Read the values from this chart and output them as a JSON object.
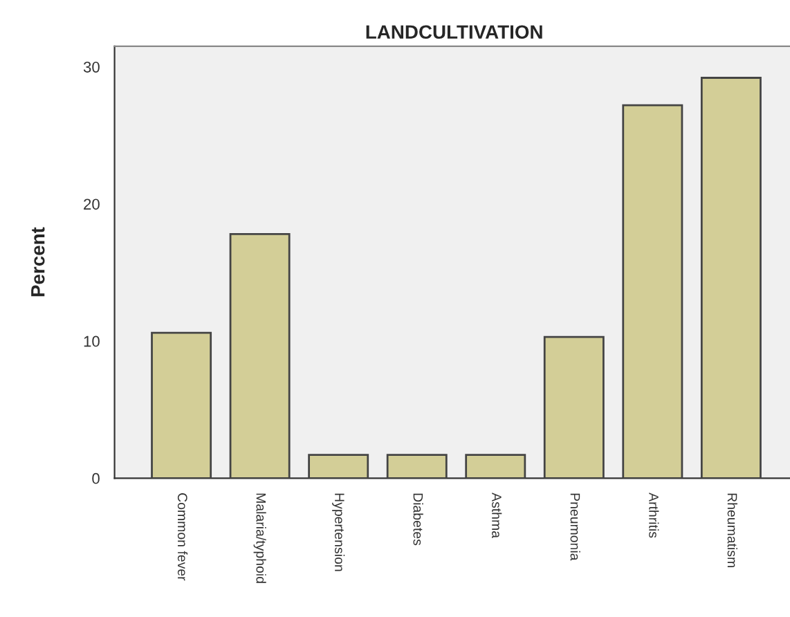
{
  "chart_data": {
    "type": "bar",
    "title": "LANDCULTIVATION",
    "ylabel": "Percent",
    "categories": [
      "Common fever",
      "Malaria/typhoid",
      "Hypertension",
      "Diabetes",
      "Asthma",
      "Pneumonia",
      "Arthritis",
      "Rheumatism"
    ],
    "values": [
      10.6,
      17.8,
      1.7,
      1.7,
      1.7,
      10.3,
      27.2,
      29.2
    ],
    "color": "#d3ce97",
    "ylim": [
      0,
      31.5
    ],
    "yticks": [
      0,
      10,
      20,
      30
    ],
    "grid": false
  }
}
